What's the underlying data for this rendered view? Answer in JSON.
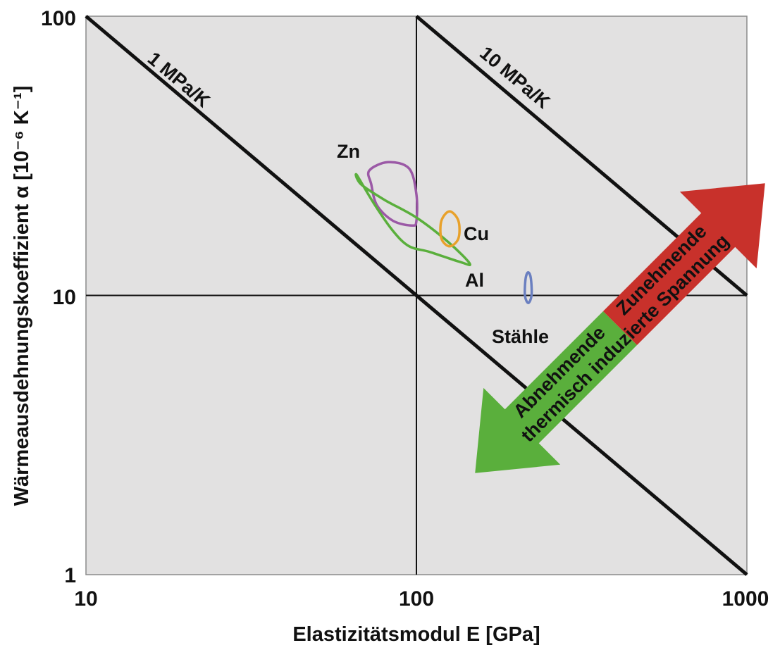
{
  "chart_data": {
    "type": "scatter",
    "title": "",
    "xlabel": "Elastizitätsmodul E [GPa]",
    "ylabel": "Wärmeausdehnungskoeffizient α [10⁻⁶ K⁻¹]",
    "xscale": "log",
    "yscale": "log",
    "xlim": [
      10,
      1000
    ],
    "ylim": [
      1,
      100
    ],
    "x_ticks": [
      "10",
      "100",
      "1000"
    ],
    "y_ticks": [
      "1",
      "10",
      "100"
    ],
    "grid": "major at 100 GPa and 10·10⁻⁶ K⁻¹",
    "reference_lines": [
      {
        "label": "1 MPa/K",
        "points": [
          [
            10,
            100
          ],
          [
            1000,
            1
          ]
        ]
      },
      {
        "label": "10 MPa/K",
        "points": [
          [
            100,
            100
          ],
          [
            1000,
            10
          ]
        ]
      }
    ],
    "regions": [
      {
        "label": "Zn",
        "color": "#9b59a6",
        "outline": [
          [
            72,
            28
          ],
          [
            82,
            30
          ],
          [
            95,
            28.5
          ],
          [
            100,
            23
          ],
          [
            100,
            18.5
          ],
          [
            97,
            17.8
          ],
          [
            85,
            18.5
          ],
          [
            76,
            21
          ],
          [
            73,
            25
          ]
        ]
      },
      {
        "label": "Al",
        "color": "#5aaf3c",
        "outline": [
          [
            66,
            27
          ],
          [
            68,
            25
          ],
          [
            80,
            22
          ],
          [
            100,
            19
          ],
          [
            125,
            15.5
          ],
          [
            145,
            13
          ],
          [
            135,
            13.2
          ],
          [
            110,
            14.3
          ],
          [
            95,
            15
          ],
          [
            85,
            17
          ],
          [
            75,
            21
          ]
        ]
      },
      {
        "label": "Cu",
        "color": "#e8a12b",
        "outline": [
          [
            126,
            20
          ],
          [
            134,
            18.5
          ],
          [
            134,
            16
          ],
          [
            126,
            15
          ],
          [
            119,
            16
          ],
          [
            119,
            18.5
          ]
        ]
      },
      {
        "label": "Stähle",
        "color": "#6a7fc0",
        "outline": [
          [
            218,
            12.1
          ],
          [
            222,
            11.5
          ],
          [
            223,
            10
          ],
          [
            218,
            9.4
          ],
          [
            213,
            10
          ],
          [
            214,
            11.5
          ]
        ]
      }
    ],
    "arrows": [
      {
        "label_lines": [
          "Zunehmende",
          "thermisch induzierte Spannung"
        ],
        "color": "#c8312b",
        "direction": "up-right"
      },
      {
        "label_lines": [
          "Abnehmende",
          "thermisch induzierte Spannung"
        ],
        "color": "#5aaf3c",
        "direction": "down-left"
      }
    ]
  }
}
